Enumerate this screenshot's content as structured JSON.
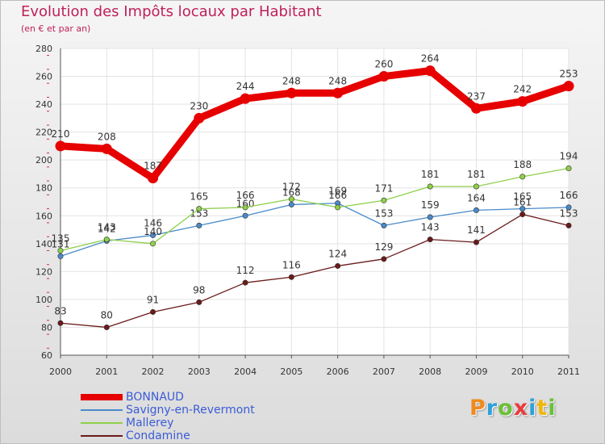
{
  "title": "Evolution des Impôts locaux par Habitant",
  "subtitle": "(en € et par an)",
  "logo_text": "Proxiti",
  "logo_colors": [
    "#ef8a1f",
    "#2fa0d8",
    "#6cbf3a",
    "#e83c3c",
    "#2fa0d8",
    "#f2b705",
    "#6cbf3a"
  ],
  "chart_data": {
    "type": "line",
    "x": [
      "2000",
      "2001",
      "2002",
      "2003",
      "2004",
      "2005",
      "2006",
      "2007",
      "2008",
      "2009",
      "2010",
      "2011"
    ],
    "ylim": [
      60,
      280
    ],
    "yticks": [
      60,
      80,
      100,
      120,
      140,
      160,
      180,
      200,
      220,
      240,
      260,
      280
    ],
    "grid": true,
    "legend_position": "bottom-left",
    "series": [
      {
        "name": "BONNAUD",
        "color": "#e60000",
        "values": [
          210,
          208,
          187,
          230,
          244,
          248,
          248,
          260,
          264,
          237,
          242,
          253
        ]
      },
      {
        "name": "Savigny-en-Revermont",
        "color": "#4a8ac8",
        "values": [
          131,
          142,
          146,
          153,
          160,
          168,
          169,
          153,
          159,
          164,
          165,
          166
        ]
      },
      {
        "name": "Mallerey",
        "color": "#8ed04a",
        "values": [
          135,
          143,
          140,
          165,
          166,
          172,
          166,
          171,
          181,
          181,
          188,
          194
        ]
      },
      {
        "name": "Condamine",
        "color": "#6b1a1a",
        "values": [
          83,
          80,
          91,
          98,
          112,
          116,
          124,
          129,
          143,
          141,
          161,
          153
        ]
      }
    ]
  }
}
